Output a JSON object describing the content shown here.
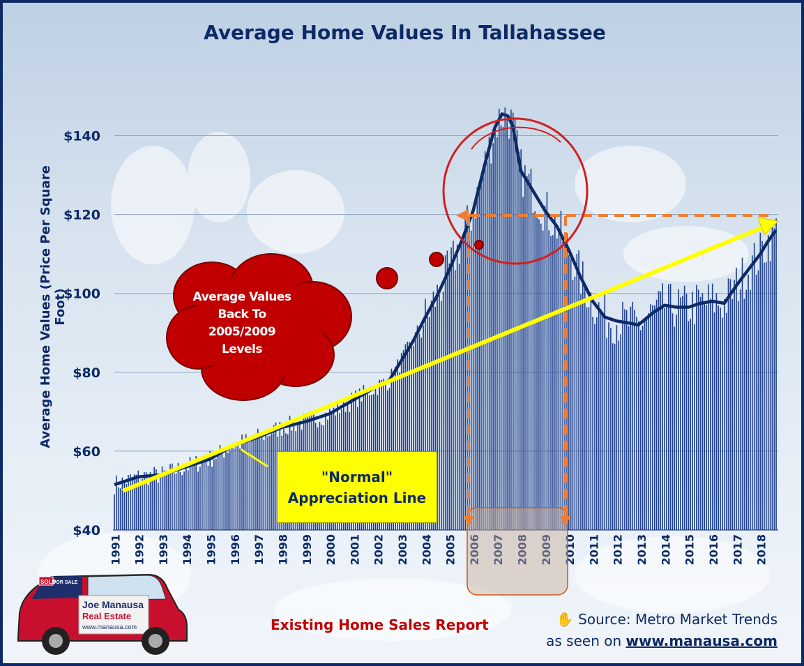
{
  "chart_data": {
    "type": "bar",
    "title": "Average Home Values In Tallahassee",
    "ylabel": "Average Home Values (Price Per Square Foot)",
    "xlabel": "",
    "ylim": [
      40,
      150
    ],
    "xlim": [
      1991,
      2018.75
    ],
    "y_ticks": [
      {
        "value": 40,
        "label": "$40"
      },
      {
        "value": 60,
        "label": "$60"
      },
      {
        "value": 80,
        "label": "$80"
      },
      {
        "value": 100,
        "label": "$100"
      },
      {
        "value": 120,
        "label": "$120"
      },
      {
        "value": 140,
        "label": "$140"
      }
    ],
    "x_ticks": [
      "1991",
      "1992",
      "1993",
      "1994",
      "1995",
      "1996",
      "1997",
      "1998",
      "1999",
      "2000",
      "2001",
      "2002",
      "2003",
      "2004",
      "2005",
      "2006",
      "2007",
      "2008",
      "2009",
      "2010",
      "2011",
      "2012",
      "2013",
      "2014",
      "2015",
      "2016",
      "2017",
      "2018"
    ],
    "grid": "horizontal",
    "series": [
      {
        "kind": "trend-line",
        "color": "#0d2a66",
        "points": [
          [
            1991.0,
            51.5
          ],
          [
            1992.0,
            53.5
          ],
          [
            1993.0,
            54.0
          ],
          [
            1994.0,
            56.0
          ],
          [
            1995.0,
            58.0
          ],
          [
            1996.0,
            61.5
          ],
          [
            1997.0,
            63.5
          ],
          [
            1998.0,
            66.0
          ],
          [
            1999.0,
            67.5
          ],
          [
            2000.0,
            69.5
          ],
          [
            2001.0,
            73.0
          ],
          [
            2002.0,
            76.5
          ],
          [
            2002.5,
            78.0
          ],
          [
            2003.0,
            83.0
          ],
          [
            2003.5,
            88.0
          ],
          [
            2004.0,
            94.0
          ],
          [
            2004.5,
            99.5
          ],
          [
            2005.0,
            106.0
          ],
          [
            2005.5,
            113.0
          ],
          [
            2006.0,
            121.0
          ],
          [
            2006.5,
            133.0
          ],
          [
            2006.9,
            142.0
          ],
          [
            2007.2,
            145.5
          ],
          [
            2007.45,
            145.0
          ],
          [
            2007.65,
            142.5
          ],
          [
            2008.0,
            131.0
          ],
          [
            2008.5,
            126.0
          ],
          [
            2009.0,
            121.0
          ],
          [
            2009.5,
            117.0
          ],
          [
            2010.0,
            111.0
          ],
          [
            2010.5,
            104.0
          ],
          [
            2011.0,
            98.0
          ],
          [
            2011.5,
            94.0
          ],
          [
            2012.0,
            93.0
          ],
          [
            2012.5,
            92.5
          ],
          [
            2012.9,
            92.0
          ],
          [
            2013.5,
            95.0
          ],
          [
            2014.0,
            97.0
          ],
          [
            2014.5,
            96.5
          ],
          [
            2015.0,
            96.5
          ],
          [
            2015.5,
            97.5
          ],
          [
            2016.0,
            98.0
          ],
          [
            2016.5,
            97.5
          ],
          [
            2017.0,
            102.0
          ],
          [
            2017.5,
            106.0
          ],
          [
            2018.0,
            110.0
          ],
          [
            2018.3,
            113.0
          ],
          [
            2018.65,
            116.0
          ]
        ]
      }
    ]
  },
  "annotations": {
    "cloud_text": [
      "Average Values",
      "Back To",
      "2005/2009",
      "Levels"
    ],
    "callout_text": [
      "\"Normal\"",
      "Appreciation Line"
    ]
  },
  "footer": {
    "report_label": "Existing Home Sales Report",
    "source_text": "Source: Metro Market Trends",
    "seen_on_text": "as seen on",
    "source_url": "www.manausa.com"
  },
  "branding": {
    "car_sign_text": [
      "Joe Manausa",
      "Real Estate",
      "www.manausa.com"
    ],
    "sold_label": "SOLD",
    "for_sale_label": "FOR SALE"
  },
  "colors": {
    "accent": "#0d2a66",
    "bars": "#1f3f8a",
    "trend_arrow": "#ffff00",
    "highlight_red": "#c00000",
    "range_orange": "#ed7d31"
  }
}
